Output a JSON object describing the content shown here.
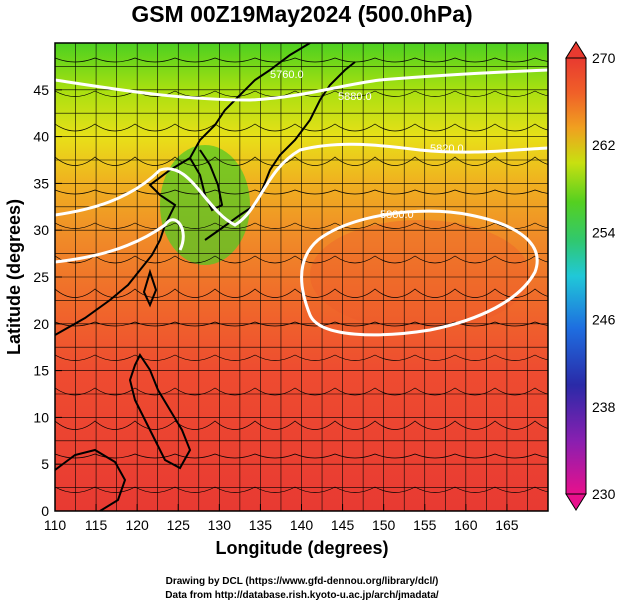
{
  "title": "GSM 00Z19May2024 (500.0hPa)",
  "axes": {
    "xlabel": "Longitude (degrees)",
    "ylabel": "Latitude  (degrees)",
    "xlim": [
      110,
      170
    ],
    "ylim": [
      0,
      50
    ],
    "xticks": [
      "110",
      "115",
      "120",
      "125",
      "130",
      "135",
      "140",
      "145",
      "150",
      "155",
      "160",
      "165"
    ],
    "yticks": [
      "0",
      "5",
      "10",
      "15",
      "20",
      "25",
      "30",
      "35",
      "40",
      "45"
    ]
  },
  "colorbar": {
    "labels": [
      "270",
      "262",
      "254",
      "246",
      "238",
      "230"
    ],
    "range": [
      230,
      270
    ],
    "colors": [
      "#e8108c",
      "#8a1fb0",
      "#2a2aa8",
      "#1e6ee0",
      "#20c8d8",
      "#30c870",
      "#55d020",
      "#c8e010",
      "#f0a020",
      "#f06028",
      "#e83a30"
    ]
  },
  "contours": [
    {
      "label": "5880.0"
    },
    {
      "label": "5820.0"
    },
    {
      "label": "5760.0"
    },
    {
      "label": "5880.0"
    }
  ],
  "credits": {
    "line1": "Drawing by DCL (https://www.gfd-dennou.org/library/dcl/)",
    "line2": "Data from http://database.rish.kyoto-u.ac.jp/arch/jmadata/"
  }
}
